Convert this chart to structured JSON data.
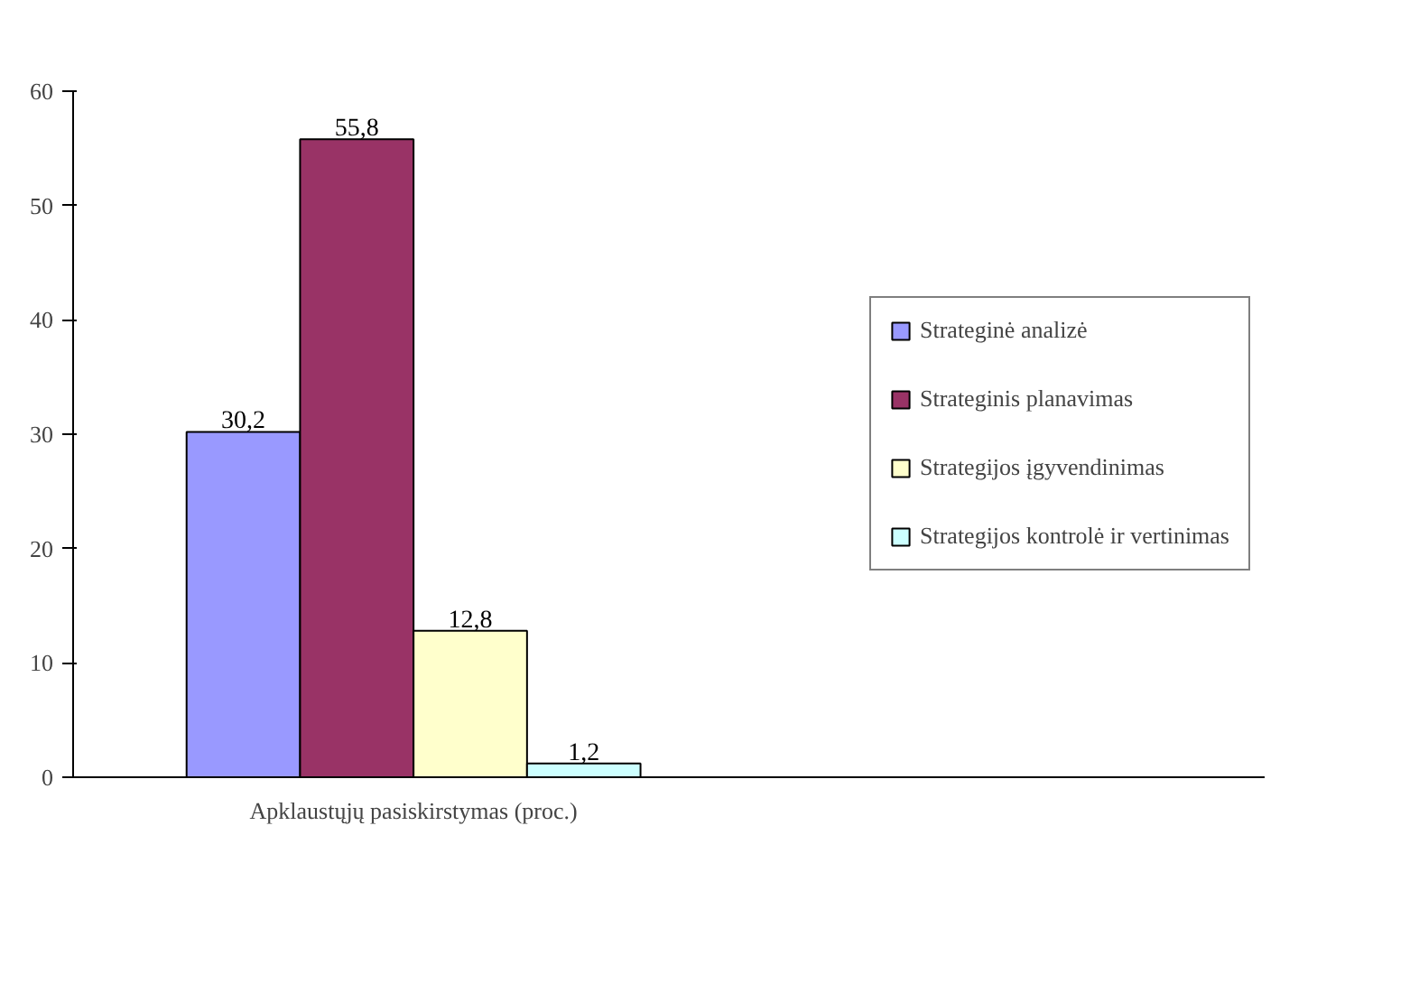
{
  "chart_data": {
    "type": "bar",
    "categories": [
      "Apklaustųjų pasiskirstymas (proc.)"
    ],
    "series": [
      {
        "name": "Strateginė analizė",
        "color": "#9999ff",
        "values": [
          30.2
        ],
        "value_labels": [
          "30,2"
        ]
      },
      {
        "name": "Strateginis planavimas",
        "color": "#993366",
        "values": [
          55.8
        ],
        "value_labels": [
          "55,8"
        ]
      },
      {
        "name": "Strategijos įgyvendinimas",
        "color": "#ffffcc",
        "values": [
          12.8
        ],
        "value_labels": [
          "12,8"
        ]
      },
      {
        "name": "Strategijos kontrolė ir vertinimas",
        "color": "#ccffff",
        "values": [
          1.2
        ],
        "value_labels": [
          "1,2"
        ]
      }
    ],
    "ylim": [
      0,
      60
    ],
    "yticks": [
      0,
      10,
      20,
      30,
      40,
      50,
      60
    ],
    "grid": false,
    "legend": "right"
  }
}
